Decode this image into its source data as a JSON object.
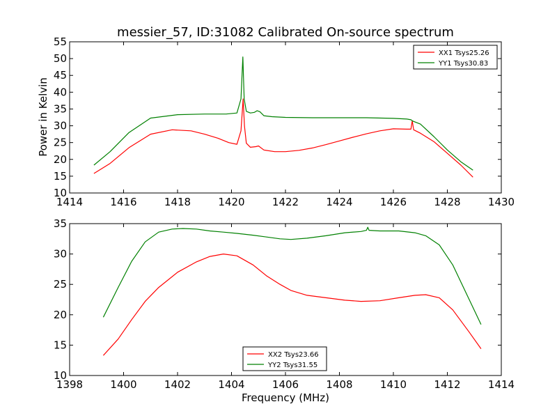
{
  "chart_data": [
    {
      "type": "line",
      "title": "messier_57, ID:31082 Calibrated On-source spectrum",
      "xlabel": "",
      "ylabel": "Power in Kelvin",
      "xlim": [
        1414,
        1430
      ],
      "ylim": [
        10,
        55
      ],
      "xticks": [
        1414,
        1416,
        1418,
        1420,
        1422,
        1424,
        1426,
        1428,
        1430
      ],
      "yticks": [
        10,
        15,
        20,
        25,
        30,
        35,
        40,
        45,
        50,
        55
      ],
      "grid": false,
      "legend_position": "top-right",
      "series": [
        {
          "name": "XX1 Tsys25.26",
          "color": "#ff0000",
          "x": [
            1414.9,
            1415.5,
            1416.2,
            1417.0,
            1417.8,
            1418.5,
            1419.0,
            1419.5,
            1419.9,
            1420.2,
            1420.35,
            1420.43,
            1420.48,
            1420.55,
            1420.7,
            1420.9,
            1421.0,
            1421.2,
            1421.6,
            1422.0,
            1422.5,
            1423.0,
            1423.5,
            1424.0,
            1424.5,
            1425.0,
            1425.5,
            1426.0,
            1426.5,
            1426.65,
            1426.7,
            1426.75,
            1427.0,
            1427.5,
            1428.0,
            1428.5,
            1428.95
          ],
          "y": [
            15.8,
            18.8,
            23.5,
            27.5,
            28.8,
            28.5,
            27.5,
            26.3,
            25.0,
            24.5,
            28.5,
            38.0,
            30.0,
            24.8,
            23.6,
            23.8,
            24.0,
            22.8,
            22.3,
            22.3,
            22.7,
            23.4,
            24.4,
            25.5,
            26.6,
            27.6,
            28.5,
            29.1,
            29.0,
            29.0,
            31.5,
            28.8,
            27.8,
            25.3,
            21.8,
            18.3,
            14.7
          ]
        },
        {
          "name": "YY1 Tsys30.83",
          "color": "#008000",
          "x": [
            1414.9,
            1415.5,
            1416.2,
            1417.0,
            1418.0,
            1419.0,
            1419.8,
            1420.2,
            1420.35,
            1420.42,
            1420.47,
            1420.55,
            1420.7,
            1420.85,
            1420.95,
            1421.05,
            1421.2,
            1421.5,
            1422.0,
            1423.0,
            1424.0,
            1425.0,
            1426.0,
            1426.5,
            1426.65,
            1426.7,
            1426.75,
            1427.0,
            1427.5,
            1428.0,
            1428.5,
            1428.95
          ],
          "y": [
            18.3,
            22.3,
            28.0,
            32.3,
            33.3,
            33.5,
            33.5,
            33.8,
            38.0,
            50.5,
            38.0,
            34.3,
            33.8,
            34.0,
            34.5,
            34.2,
            33.0,
            32.7,
            32.5,
            32.4,
            32.4,
            32.4,
            32.2,
            32.0,
            31.8,
            31.5,
            31.3,
            30.5,
            26.8,
            22.8,
            19.3,
            16.8
          ]
        }
      ]
    },
    {
      "type": "line",
      "title": "",
      "xlabel": "Frequency (MHz)",
      "ylabel": "",
      "xlim": [
        1398,
        1414
      ],
      "ylim": [
        10,
        35
      ],
      "xticks": [
        1398,
        1400,
        1402,
        1404,
        1406,
        1408,
        1410,
        1412,
        1414
      ],
      "yticks": [
        10,
        15,
        20,
        25,
        30,
        35
      ],
      "grid": false,
      "legend_position": "bottom-center",
      "series": [
        {
          "name": "XX2 Tsys23.66",
          "color": "#ff0000",
          "x": [
            1399.25,
            1399.8,
            1400.3,
            1400.8,
            1401.3,
            1402.0,
            1402.7,
            1403.2,
            1403.7,
            1404.2,
            1404.8,
            1405.3,
            1405.8,
            1406.2,
            1406.8,
            1407.5,
            1408.2,
            1408.8,
            1409.5,
            1410.2,
            1410.8,
            1411.2,
            1411.7,
            1412.2,
            1412.8,
            1413.25
          ],
          "y": [
            13.3,
            16.0,
            19.2,
            22.2,
            24.5,
            27.0,
            28.7,
            29.6,
            30.0,
            29.7,
            28.2,
            26.4,
            25.0,
            24.0,
            23.2,
            22.8,
            22.4,
            22.2,
            22.3,
            22.8,
            23.2,
            23.3,
            22.8,
            20.8,
            17.2,
            14.4
          ]
        },
        {
          "name": "YY2 Tsys31.55",
          "color": "#008000",
          "x": [
            1399.25,
            1399.8,
            1400.3,
            1400.8,
            1401.3,
            1401.8,
            1402.2,
            1402.7,
            1403.2,
            1403.7,
            1404.2,
            1404.8,
            1405.3,
            1405.8,
            1406.2,
            1406.8,
            1407.5,
            1408.2,
            1408.8,
            1409.0,
            1409.05,
            1409.1,
            1409.5,
            1410.2,
            1410.8,
            1411.2,
            1411.7,
            1412.2,
            1412.8,
            1413.25
          ],
          "y": [
            19.6,
            24.5,
            28.8,
            32.0,
            33.6,
            34.1,
            34.2,
            34.1,
            33.8,
            33.6,
            33.4,
            33.1,
            32.8,
            32.5,
            32.4,
            32.6,
            33.0,
            33.5,
            33.7,
            33.9,
            34.4,
            33.9,
            33.8,
            33.8,
            33.5,
            33.0,
            31.5,
            28.2,
            22.6,
            18.4
          ]
        }
      ]
    }
  ]
}
